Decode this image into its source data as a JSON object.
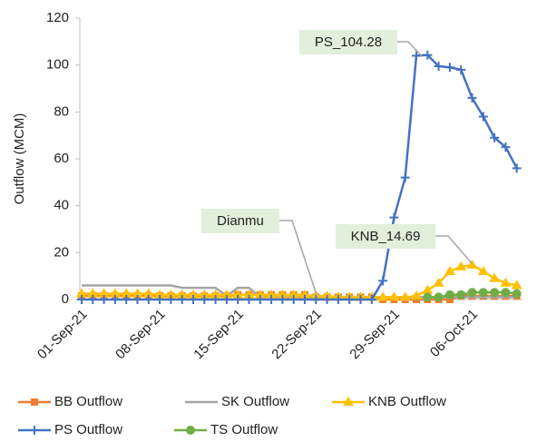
{
  "chart_data": {
    "type": "line",
    "y_label": "Outflow (MCM)",
    "categories": [
      "01-Sep-21",
      null,
      null,
      null,
      null,
      null,
      null,
      "08-Sep-21",
      null,
      null,
      null,
      null,
      null,
      null,
      "15-Sep-21",
      null,
      null,
      null,
      null,
      null,
      null,
      "22-Sep-21",
      null,
      null,
      null,
      null,
      null,
      null,
      "29-Sep-21",
      null,
      null,
      null,
      null,
      null,
      null,
      "06-Oct-21",
      null,
      null,
      null,
      null
    ],
    "ylim": [
      0,
      120
    ],
    "yticks": [
      0,
      20,
      40,
      60,
      80,
      100,
      120
    ],
    "series": [
      {
        "name": "BB Outflow",
        "color": "#ed7d31",
        "marker": "square",
        "values": [
          1.5,
          1.5,
          1.5,
          1.5,
          1.5,
          1.5,
          1.5,
          1.5,
          1.5,
          1.5,
          1.5,
          1.5,
          1.5,
          1.5,
          2,
          2,
          2,
          2,
          2,
          2,
          2,
          1,
          1,
          1,
          1,
          1,
          1,
          0,
          0,
          0,
          0,
          0,
          0,
          0,
          1.5,
          1.5,
          1.5,
          1.5,
          1.5,
          1.5
        ]
      },
      {
        "name": "SK Outflow",
        "color": "#a5a5a5",
        "marker": "none",
        "values": [
          6,
          6,
          6,
          6,
          6,
          6,
          6,
          6,
          6,
          5,
          5,
          5,
          5,
          1.5,
          5,
          5,
          1,
          1,
          1,
          1,
          1,
          1,
          1,
          1,
          1,
          1,
          1,
          1,
          1,
          1,
          1,
          1,
          1,
          1,
          1,
          1,
          1,
          1,
          1,
          1
        ]
      },
      {
        "name": "KNB Outflow",
        "color": "#ffc000",
        "marker": "triangle",
        "values": [
          2.5,
          2.5,
          2.5,
          2.5,
          2.5,
          2.5,
          2.5,
          2,
          2,
          2,
          2,
          2,
          2,
          2,
          2,
          2,
          2,
          2,
          2,
          2,
          2,
          1.5,
          1.5,
          1,
          1,
          1,
          1,
          1,
          1,
          1,
          1.5,
          4,
          7,
          12,
          14,
          14.69,
          12,
          9,
          7,
          6
        ]
      },
      {
        "name": "PS Outflow",
        "color": "#4472c4",
        "marker": "plus",
        "values": [
          0,
          0,
          0,
          0,
          0,
          0,
          0,
          0,
          0,
          0,
          0,
          0,
          0,
          0,
          0,
          0,
          0,
          0,
          0,
          0,
          0,
          0,
          0,
          0,
          0,
          0,
          0,
          8,
          35,
          52,
          104,
          104.28,
          99.5,
          99,
          98,
          86,
          78,
          69,
          65,
          56
        ]
      },
      {
        "name": "TS Outflow",
        "color": "#70ad47",
        "marker": "circle",
        "values": [
          null,
          null,
          null,
          null,
          null,
          null,
          null,
          null,
          null,
          null,
          null,
          null,
          null,
          null,
          null,
          null,
          null,
          null,
          null,
          null,
          null,
          null,
          null,
          null,
          null,
          null,
          null,
          null,
          null,
          null,
          null,
          1,
          1,
          2,
          2,
          3,
          3,
          3,
          3,
          2.5
        ]
      }
    ],
    "annotations": [
      "PS_104.28",
      "Dianmu",
      "KNB_14.69"
    ]
  }
}
